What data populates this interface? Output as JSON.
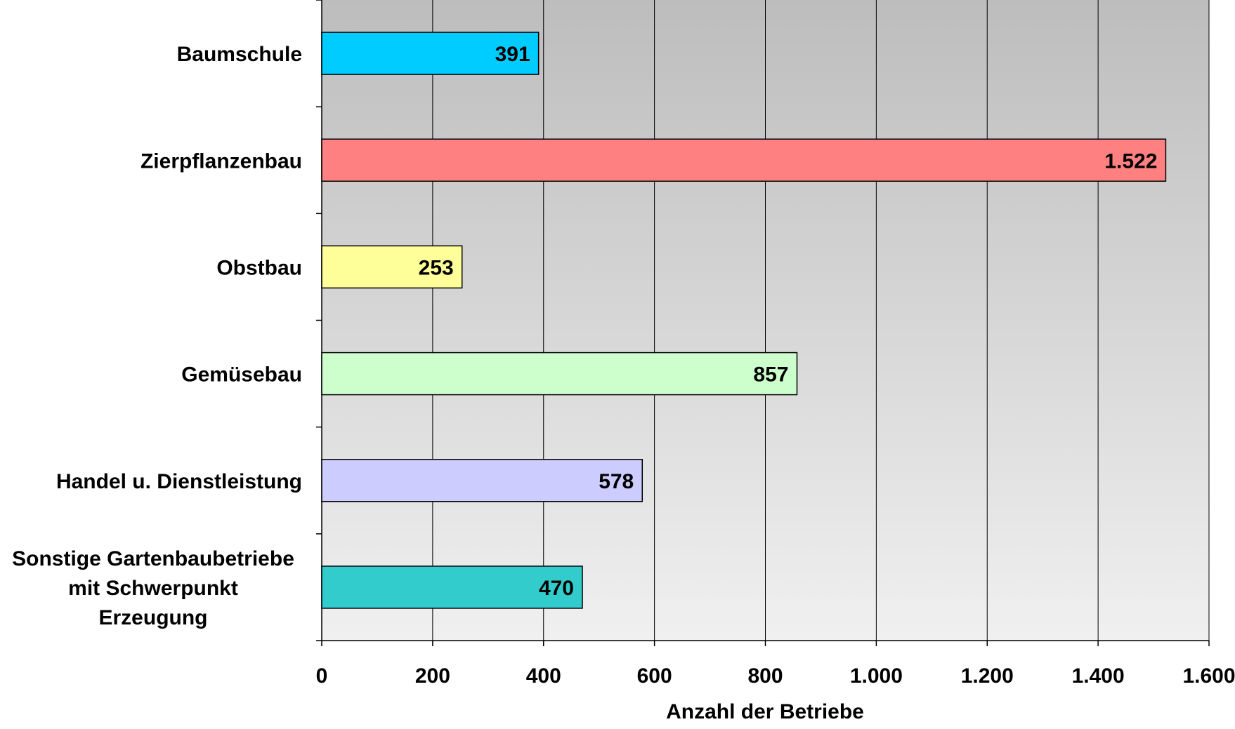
{
  "chart_data": {
    "type": "bar",
    "orientation": "horizontal",
    "categories": [
      [
        "Baumschule"
      ],
      [
        "Zierpflanzenbau"
      ],
      [
        "Obstbau"
      ],
      [
        "Gemüsebau"
      ],
      [
        "Handel u. Dienstleistung"
      ],
      [
        "Sonstige Gartenbaubetriebe",
        "mit Schwerpunkt",
        "Erzeugung"
      ]
    ],
    "values": [
      391,
      1522,
      253,
      857,
      578,
      470
    ],
    "data_labels": [
      "391",
      "1.522",
      "253",
      "857",
      "578",
      "470"
    ],
    "colors": [
      "#00CCFF",
      "#FF8080",
      "#FFFF99",
      "#CCFFCC",
      "#CCCCFF",
      "#33CCCC"
    ],
    "xlabel": "Anzahl der Betriebe",
    "ylabel": "",
    "title": "",
    "xlim": [
      0,
      1600
    ],
    "x_ticks": [
      0,
      200,
      400,
      600,
      800,
      1000,
      1200,
      1400,
      1600
    ],
    "x_tick_labels": [
      "0",
      "200",
      "400",
      "600",
      "800",
      "1.000",
      "1.200",
      "1.400",
      "1.600"
    ],
    "grid": true,
    "plot_background": "gradient-gray",
    "legend": "none"
  }
}
